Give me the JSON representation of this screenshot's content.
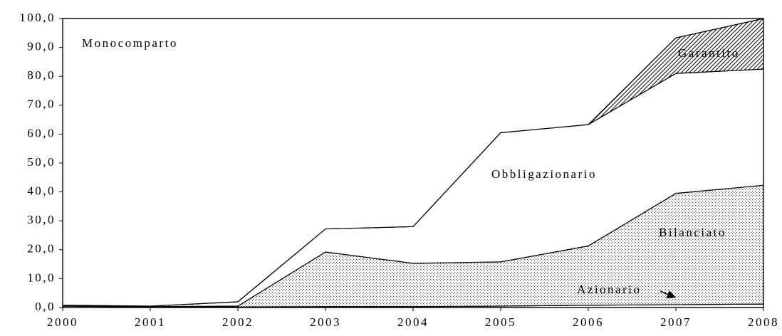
{
  "chart_data": {
    "type": "stacked_area",
    "categories": [
      "2000",
      "2001",
      "2002",
      "2003",
      "2004",
      "2005",
      "2006",
      "2007",
      "2008"
    ],
    "series": [
      {
        "name": "Azionario",
        "color": "#ffffff",
        "pattern": "none",
        "values": [
          0.5,
          0.2,
          0.2,
          0.3,
          0.3,
          0.5,
          0.8,
          1.0,
          1.2
        ]
      },
      {
        "name": "Bilanciato",
        "color": "#ffffff",
        "pattern": "dots",
        "values": [
          0.2,
          0.1,
          0.3,
          18.9,
          15.0,
          15.3,
          20.5,
          38.5,
          41.1
        ]
      },
      {
        "name": "Obbligazionario",
        "color": "#ffffff",
        "pattern": "none",
        "values": [
          0.1,
          0.2,
          1.5,
          8.0,
          12.7,
          44.7,
          42.0,
          41.5,
          40.2
        ]
      },
      {
        "name": "Garantito",
        "color": "#ffffff",
        "pattern": "hatch",
        "values": [
          0,
          0,
          0,
          0,
          0,
          0,
          0,
          12.3,
          17.5
        ]
      },
      {
        "name": "Monocomparto",
        "color": "#ffffff",
        "pattern": "none",
        "values": [
          99.2,
          99.5,
          98.0,
          72.8,
          72.0,
          39.5,
          36.7,
          6.7,
          0
        ]
      }
    ],
    "ylim": [
      0,
      100
    ],
    "yticks": [
      {
        "value": 0,
        "label": "0,0"
      },
      {
        "value": 10,
        "label": "10,0"
      },
      {
        "value": 20,
        "label": "20,0"
      },
      {
        "value": 30,
        "label": "30,0"
      },
      {
        "value": 40,
        "label": "40,0"
      },
      {
        "value": 50,
        "label": "50,0"
      },
      {
        "value": 60,
        "label": "60,0"
      },
      {
        "value": 70,
        "label": "70,0"
      },
      {
        "value": 80,
        "label": "80,0"
      },
      {
        "value": 90,
        "label": "90,0"
      },
      {
        "value": 100,
        "label": "100,0"
      }
    ]
  }
}
